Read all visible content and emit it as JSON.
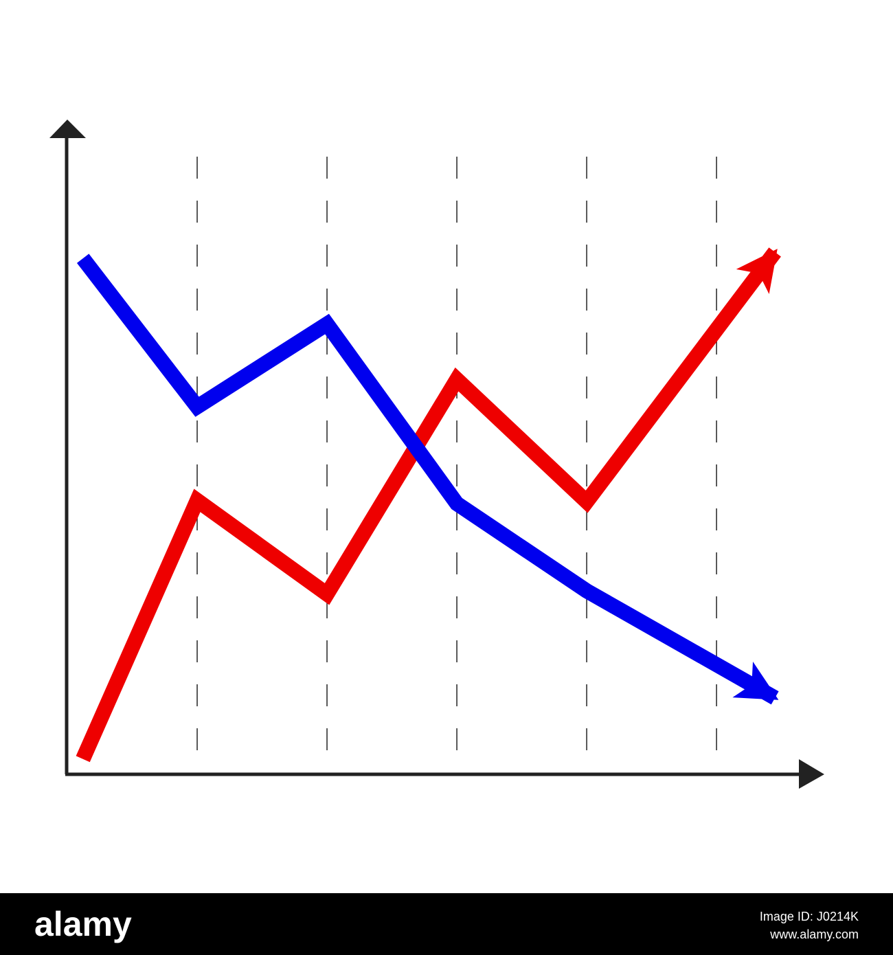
{
  "chart_data": {
    "type": "line",
    "x": [
      0.12,
      1,
      2,
      3,
      4,
      5.45
    ],
    "xlim": [
      0,
      5.83
    ],
    "ylim": [
      0,
      100
    ],
    "grid": true,
    "series": [
      {
        "color": "#ee0000",
        "values": [
          2.4,
          43,
          28.3,
          62,
          42.8,
          82
        ]
      },
      {
        "color": "#0000ee",
        "values": [
          81,
          57.7,
          70.7,
          42.5,
          28.8,
          12
        ]
      }
    ]
  },
  "footer": {
    "brand": "alamy",
    "image_id": "Image ID: J0214K",
    "url": "www.alamy.com"
  }
}
